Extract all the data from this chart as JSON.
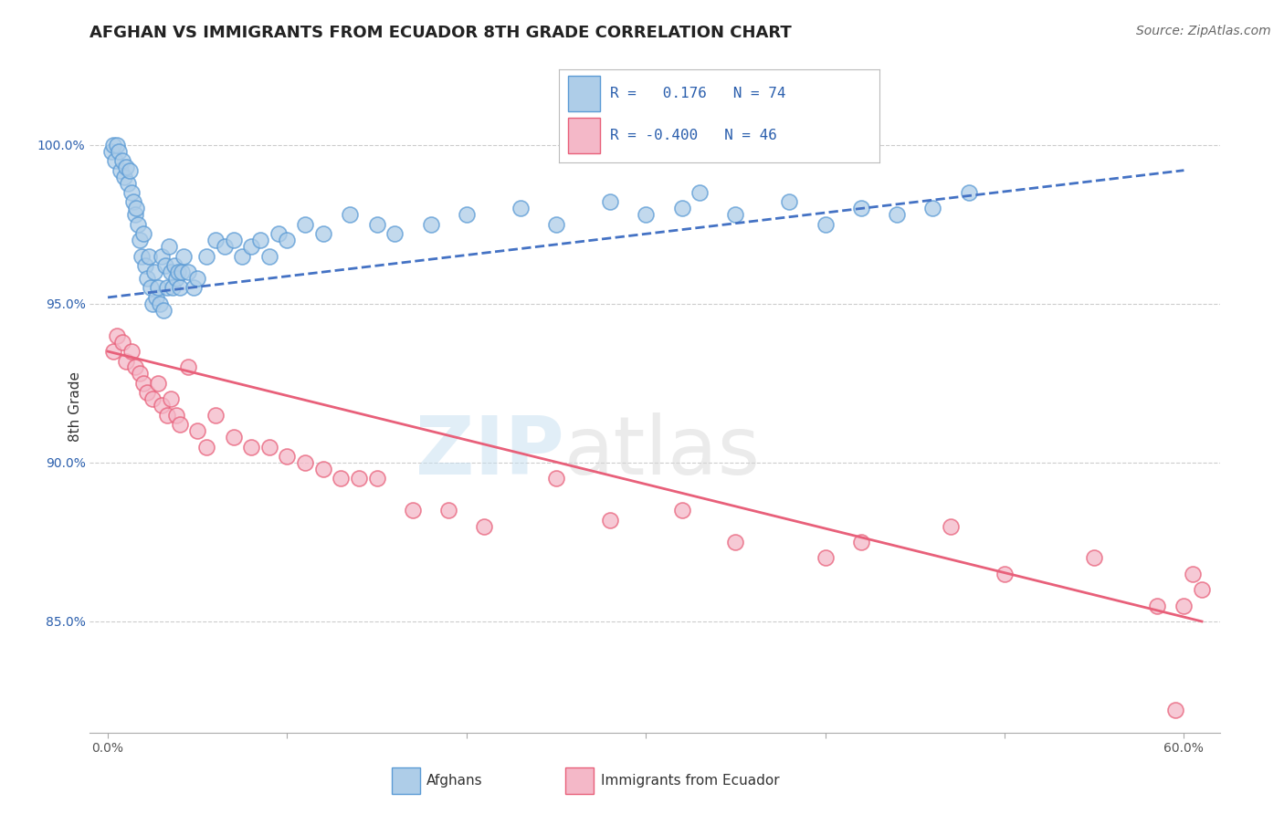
{
  "title": "AFGHAN VS IMMIGRANTS FROM ECUADOR 8TH GRADE CORRELATION CHART",
  "source": "Source: ZipAtlas.com",
  "ylabel_label": "8th Grade",
  "xlim": [
    -1.0,
    62.0
  ],
  "ylim": [
    81.5,
    102.0
  ],
  "blue_R": 0.176,
  "blue_N": 74,
  "pink_R": -0.4,
  "pink_N": 46,
  "blue_color": "#aecde8",
  "blue_edge": "#5b9bd5",
  "pink_color": "#f4b8c8",
  "pink_edge": "#e8607a",
  "trend_blue_color": "#4472c4",
  "trend_pink_color": "#e8607a",
  "legend_text_color": "#2b5fad",
  "tick_color_y": "#2b5fad",
  "watermark_zip": "ZIP",
  "watermark_atlas": "atlas",
  "blue_scatter_x": [
    0.2,
    0.3,
    0.4,
    0.5,
    0.6,
    0.7,
    0.8,
    0.9,
    1.0,
    1.1,
    1.2,
    1.3,
    1.4,
    1.5,
    1.6,
    1.7,
    1.8,
    1.9,
    2.0,
    2.1,
    2.2,
    2.3,
    2.4,
    2.5,
    2.6,
    2.7,
    2.8,
    2.9,
    3.0,
    3.1,
    3.2,
    3.3,
    3.4,
    3.5,
    3.6,
    3.7,
    3.8,
    3.9,
    4.0,
    4.1,
    4.2,
    4.5,
    4.8,
    5.0,
    5.5,
    6.0,
    6.5,
    7.0,
    7.5,
    8.0,
    8.5,
    9.0,
    9.5,
    10.0,
    11.0,
    12.0,
    13.5,
    15.0,
    16.0,
    18.0,
    20.0,
    23.0,
    25.0,
    28.0,
    30.0,
    32.0,
    33.0,
    35.0,
    38.0,
    40.0,
    42.0,
    44.0,
    46.0,
    48.0
  ],
  "blue_scatter_y": [
    99.8,
    100.0,
    99.5,
    100.0,
    99.8,
    99.2,
    99.5,
    99.0,
    99.3,
    98.8,
    99.2,
    98.5,
    98.2,
    97.8,
    98.0,
    97.5,
    97.0,
    96.5,
    97.2,
    96.2,
    95.8,
    96.5,
    95.5,
    95.0,
    96.0,
    95.2,
    95.5,
    95.0,
    96.5,
    94.8,
    96.2,
    95.5,
    96.8,
    96.0,
    95.5,
    96.2,
    95.8,
    96.0,
    95.5,
    96.0,
    96.5,
    96.0,
    95.5,
    95.8,
    96.5,
    97.0,
    96.8,
    97.0,
    96.5,
    96.8,
    97.0,
    96.5,
    97.2,
    97.0,
    97.5,
    97.2,
    97.8,
    97.5,
    97.2,
    97.5,
    97.8,
    98.0,
    97.5,
    98.2,
    97.8,
    98.0,
    98.5,
    97.8,
    98.2,
    97.5,
    98.0,
    97.8,
    98.0,
    98.5
  ],
  "pink_scatter_x": [
    0.3,
    0.5,
    0.8,
    1.0,
    1.3,
    1.5,
    1.8,
    2.0,
    2.2,
    2.5,
    2.8,
    3.0,
    3.3,
    3.5,
    3.8,
    4.0,
    4.5,
    5.0,
    5.5,
    6.0,
    7.0,
    8.0,
    9.0,
    10.0,
    11.0,
    12.0,
    13.0,
    14.0,
    15.0,
    17.0,
    19.0,
    21.0,
    25.0,
    28.0,
    32.0,
    35.0,
    40.0,
    42.0,
    47.0,
    50.0,
    55.0,
    58.5,
    60.0,
    60.5,
    61.0,
    59.5
  ],
  "pink_scatter_y": [
    93.5,
    94.0,
    93.8,
    93.2,
    93.5,
    93.0,
    92.8,
    92.5,
    92.2,
    92.0,
    92.5,
    91.8,
    91.5,
    92.0,
    91.5,
    91.2,
    93.0,
    91.0,
    90.5,
    91.5,
    90.8,
    90.5,
    90.5,
    90.2,
    90.0,
    89.8,
    89.5,
    89.5,
    89.5,
    88.5,
    88.5,
    88.0,
    89.5,
    88.2,
    88.5,
    87.5,
    87.0,
    87.5,
    88.0,
    86.5,
    87.0,
    85.5,
    85.5,
    86.5,
    86.0,
    82.2
  ],
  "blue_trend_x": [
    0.0,
    60.0
  ],
  "blue_trend_y": [
    95.2,
    99.2
  ],
  "pink_trend_x": [
    0.0,
    61.0
  ],
  "pink_trend_y": [
    93.5,
    85.0
  ],
  "yticks": [
    85.0,
    90.0,
    95.0,
    100.0
  ],
  "ytick_labels": [
    "85.0%",
    "90.0%",
    "95.0%",
    "100.0%"
  ],
  "xtick_labels_left": "0.0%",
  "xtick_labels_right": "60.0%",
  "title_fontsize": 13,
  "tick_fontsize": 10,
  "source_fontsize": 10
}
